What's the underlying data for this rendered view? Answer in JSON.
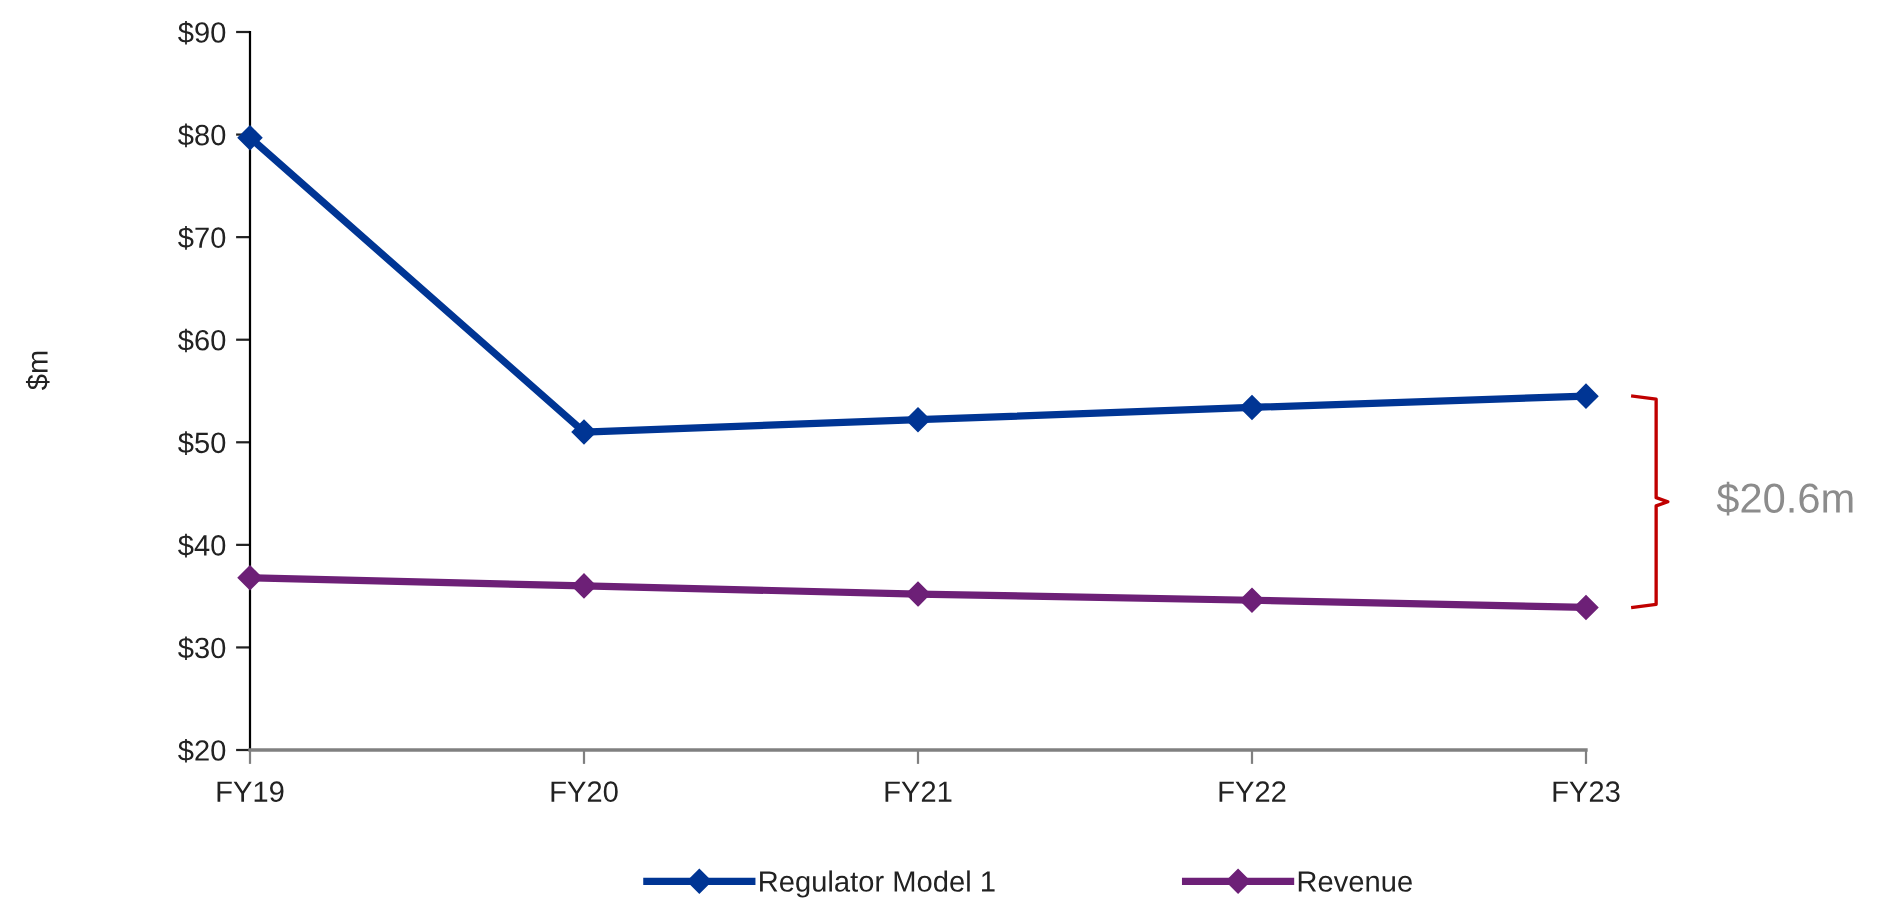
{
  "chart_data": {
    "type": "line",
    "ylabel": "$m",
    "categories": [
      "FY19",
      "FY20",
      "FY21",
      "FY22",
      "FY23"
    ],
    "series": [
      {
        "name": "Regulator Model 1",
        "color": "#003594",
        "values": [
          79.7,
          51.0,
          52.2,
          53.4,
          54.5
        ]
      },
      {
        "name": "Revenue",
        "color": "#6d2077",
        "values": [
          36.8,
          36.0,
          35.2,
          34.6,
          33.9
        ]
      }
    ],
    "ylim": [
      20,
      90
    ],
    "yticks": [
      {
        "value": 20,
        "label": "$20"
      },
      {
        "value": 30,
        "label": "$30"
      },
      {
        "value": 40,
        "label": "$40"
      },
      {
        "value": 50,
        "label": "$50"
      },
      {
        "value": 60,
        "label": "$60"
      },
      {
        "value": 70,
        "label": "$70"
      },
      {
        "value": 80,
        "label": "$80"
      },
      {
        "value": 90,
        "label": "$90"
      }
    ],
    "annotations": [
      "$20.6m"
    ],
    "grid": false,
    "legend": "bottom",
    "marker": "diamond",
    "line_style": "solid"
  }
}
